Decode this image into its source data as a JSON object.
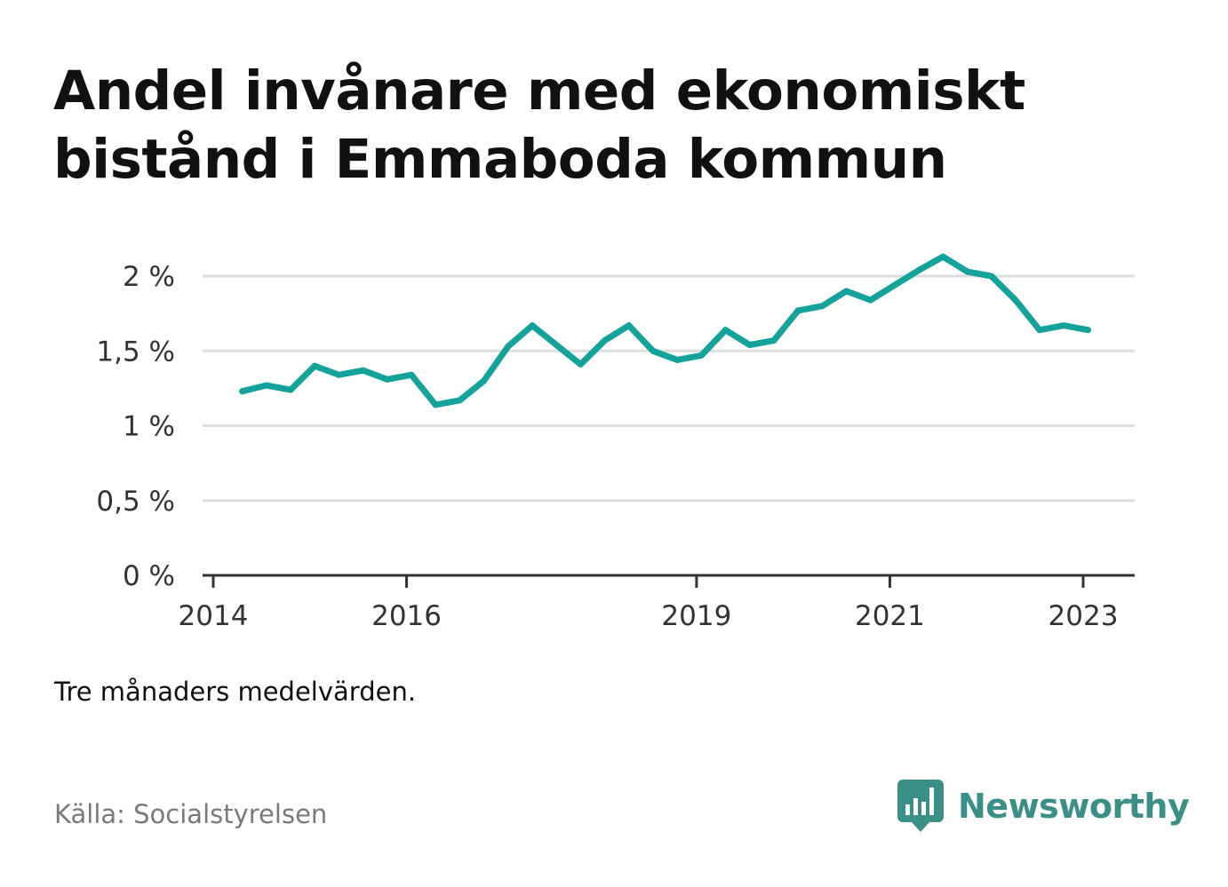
{
  "title": "Andel invånare med ekonomiskt bistånd i Emmaboda kommun",
  "note": "Tre månaders medelvärden.",
  "source": "Källa: Socialstyrelsen",
  "brand": {
    "name": "Newsworthy",
    "icon": "bar-chart-speech-bubble-icon",
    "color": "#3a8f86"
  },
  "colors": {
    "line": "#14a39a",
    "grid": "#dddddd",
    "axis": "#333333"
  },
  "chart_data": {
    "type": "line",
    "title": "Andel invånare med ekonomiskt bistånd i Emmaboda kommun",
    "xlabel": "",
    "ylabel": "",
    "grid": true,
    "x_range": [
      2014,
      2023.8
    ],
    "ylim": [
      0,
      2.3
    ],
    "x_ticks": [
      {
        "value": 2014,
        "label": "2014"
      },
      {
        "value": 2016,
        "label": "2016"
      },
      {
        "value": 2019,
        "label": "2019"
      },
      {
        "value": 2021,
        "label": "2021"
      },
      {
        "value": 2023,
        "label": "2023"
      }
    ],
    "y_ticks": [
      {
        "value": 0,
        "label": "0 %"
      },
      {
        "value": 0.5,
        "label": "0,5 %"
      },
      {
        "value": 1,
        "label": "1 %"
      },
      {
        "value": 1.5,
        "label": "1,5 %"
      },
      {
        "value": 2,
        "label": "2 %"
      }
    ],
    "series": [
      {
        "values": [
          {
            "x": 2014.3,
            "y": 1.23
          },
          {
            "x": 2014.55,
            "y": 1.27
          },
          {
            "x": 2014.8,
            "y": 1.24
          },
          {
            "x": 2015.05,
            "y": 1.4
          },
          {
            "x": 2015.3,
            "y": 1.34
          },
          {
            "x": 2015.55,
            "y": 1.37
          },
          {
            "x": 2015.8,
            "y": 1.31
          },
          {
            "x": 2016.05,
            "y": 1.34
          },
          {
            "x": 2016.3,
            "y": 1.14
          },
          {
            "x": 2016.55,
            "y": 1.17
          },
          {
            "x": 2016.8,
            "y": 1.3
          },
          {
            "x": 2017.05,
            "y": 1.53
          },
          {
            "x": 2017.3,
            "y": 1.67
          },
          {
            "x": 2017.55,
            "y": 1.54
          },
          {
            "x": 2017.8,
            "y": 1.41
          },
          {
            "x": 2018.05,
            "y": 1.57
          },
          {
            "x": 2018.3,
            "y": 1.67
          },
          {
            "x": 2018.55,
            "y": 1.5
          },
          {
            "x": 2018.8,
            "y": 1.44
          },
          {
            "x": 2019.05,
            "y": 1.47
          },
          {
            "x": 2019.3,
            "y": 1.64
          },
          {
            "x": 2019.55,
            "y": 1.54
          },
          {
            "x": 2019.8,
            "y": 1.57
          },
          {
            "x": 2020.05,
            "y": 1.77
          },
          {
            "x": 2020.3,
            "y": 1.8
          },
          {
            "x": 2020.55,
            "y": 1.9
          },
          {
            "x": 2020.8,
            "y": 1.84
          },
          {
            "x": 2021.05,
            "y": 1.94
          },
          {
            "x": 2021.3,
            "y": 2.04
          },
          {
            "x": 2021.55,
            "y": 2.13
          },
          {
            "x": 2021.8,
            "y": 2.03
          },
          {
            "x": 2022.05,
            "y": 2.0
          },
          {
            "x": 2022.3,
            "y": 1.84
          },
          {
            "x": 2022.55,
            "y": 1.64
          },
          {
            "x": 2022.8,
            "y": 1.67
          },
          {
            "x": 2023.05,
            "y": 1.64
          }
        ]
      }
    ]
  }
}
